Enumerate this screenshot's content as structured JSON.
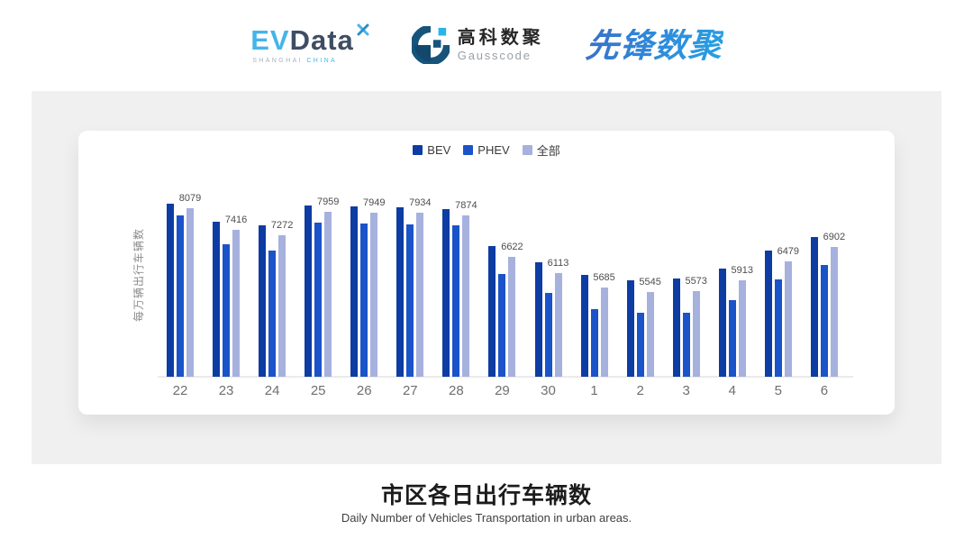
{
  "header": {
    "evdata": {
      "ev": "EV",
      "data": "Data",
      "sub_left": "SHANGHAI",
      "sub_right": "CHINA",
      "ev_color": "#45b5e8",
      "data_color": "#3e4d63"
    },
    "gausscode": {
      "cn": "高科数聚",
      "en": "Gausscode",
      "mark_color": "#16547c",
      "accent_color": "#2ab4e8"
    },
    "pioneer": {
      "text": "先锋数聚",
      "color": "#2f82d6"
    }
  },
  "chart_data": {
    "type": "bar",
    "title": "市区各日出行车辆数",
    "subtitle": "Daily Number of Vehicles Transportation in urban areas.",
    "ylabel": "每万辆出行车辆数",
    "categories": [
      "22",
      "23",
      "24",
      "25",
      "26",
      "27",
      "28",
      "29",
      "30",
      "1",
      "2",
      "3",
      "4",
      "5",
      "6"
    ],
    "series": [
      {
        "key": "bev",
        "name": "BEV",
        "color": "#0d3ca3",
        "data_labels": false,
        "values": [
          8210,
          7670,
          7560,
          8150,
          8120,
          8100,
          8060,
          6930,
          6460,
          6060,
          5910,
          5950,
          6250,
          6790,
          7210
        ]
      },
      {
        "key": "phev",
        "name": "PHEV",
        "color": "#1b53c9",
        "data_labels": false,
        "values": [
          7850,
          7000,
          6800,
          7650,
          7610,
          7580,
          7570,
          6090,
          5520,
          5050,
          4920,
          4920,
          5320,
          5920,
          6360
        ]
      },
      {
        "key": "all",
        "name": "全部",
        "color": "#a7b1de",
        "data_labels": true,
        "values": [
          8079,
          7416,
          7272,
          7959,
          7949,
          7934,
          7874,
          6622,
          6113,
          5685,
          5545,
          5573,
          5913,
          6479,
          6902
        ]
      }
    ],
    "ylim": [
      3000,
      8400
    ],
    "grid": false,
    "legend_position": "top"
  },
  "footer": {
    "title": "市区各日出行车辆数",
    "subtitle": "Daily Number of Vehicles Transportation in urban areas."
  }
}
